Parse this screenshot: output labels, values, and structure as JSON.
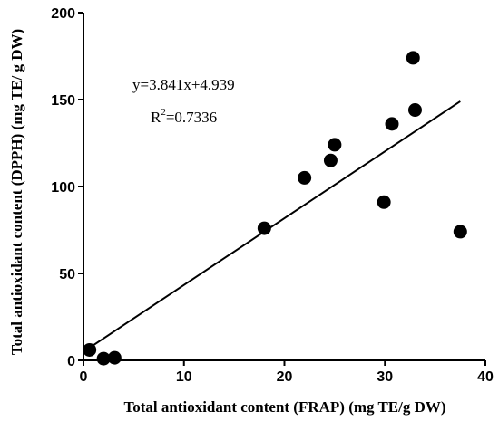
{
  "chart_data": {
    "type": "scatter",
    "title": "",
    "xlabel": "Total antioxidant content (FRAP) (mg TE/g DW)",
    "ylabel": "Total antioxidant content (DPPH) (mg TE/ g DW)",
    "xlim": [
      0,
      40
    ],
    "ylim": [
      0,
      200
    ],
    "xticks": [
      0,
      10,
      20,
      30,
      40
    ],
    "yticks": [
      0,
      50,
      100,
      150,
      200
    ],
    "grid": false,
    "points": [
      {
        "x": 0.6,
        "y": 6
      },
      {
        "x": 2.0,
        "y": 1
      },
      {
        "x": 3.1,
        "y": 1.5
      },
      {
        "x": 18.0,
        "y": 76
      },
      {
        "x": 22.0,
        "y": 105
      },
      {
        "x": 24.6,
        "y": 115
      },
      {
        "x": 25.0,
        "y": 124
      },
      {
        "x": 29.9,
        "y": 91
      },
      {
        "x": 30.7,
        "y": 136
      },
      {
        "x": 32.8,
        "y": 174
      },
      {
        "x": 33.0,
        "y": 144
      },
      {
        "x": 37.5,
        "y": 74
      }
    ],
    "fit": {
      "slope": 3.841,
      "intercept": 4.939,
      "x_range": [
        0.5,
        37.5
      ]
    },
    "annotations": {
      "equation": "y=3.841x+4.939",
      "r2_prefix": "R",
      "r2_sup": "2",
      "r2_value": "=0.7336"
    }
  }
}
